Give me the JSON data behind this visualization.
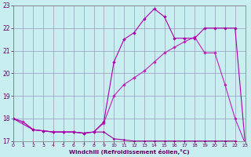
{
  "xlabel": "Windchill (Refroidissement éolien,°C)",
  "bg_color": "#c8eef0",
  "grid_color": "#9999bb",
  "xlim": [
    0,
    23
  ],
  "ylim": [
    17,
    23
  ],
  "yticks": [
    17,
    18,
    19,
    20,
    21,
    22,
    23
  ],
  "xticks": [
    0,
    1,
    2,
    3,
    4,
    5,
    6,
    7,
    8,
    9,
    10,
    11,
    12,
    13,
    14,
    15,
    16,
    17,
    18,
    19,
    20,
    21,
    22,
    23
  ],
  "line1_color": "#990099",
  "line2_color": "#bb22bb",
  "line3_color": "#aa00aa",
  "line1_x": [
    0,
    1,
    2,
    3,
    4,
    5,
    6,
    7,
    8,
    9,
    10,
    11,
    12,
    13,
    14,
    15,
    16,
    17,
    18,
    19,
    20,
    21,
    22,
    23
  ],
  "line1_y": [
    18.0,
    17.85,
    17.5,
    17.45,
    17.4,
    17.4,
    17.4,
    17.35,
    17.4,
    17.4,
    17.1,
    17.05,
    17.0,
    17.0,
    17.0,
    17.0,
    17.0,
    17.0,
    17.0,
    17.0,
    17.0,
    17.0,
    17.0,
    16.9
  ],
  "line2_x": [
    0,
    1,
    2,
    3,
    4,
    5,
    6,
    7,
    8,
    9,
    10,
    11,
    12,
    13,
    14,
    15,
    16,
    17,
    18,
    19,
    20,
    21,
    22,
    23
  ],
  "line2_y": [
    18.0,
    17.85,
    17.5,
    17.45,
    17.4,
    17.4,
    17.4,
    17.35,
    17.4,
    17.8,
    19.0,
    19.5,
    19.8,
    20.1,
    20.5,
    20.9,
    21.15,
    21.4,
    21.6,
    20.9,
    20.9,
    19.5,
    18.0,
    16.9
  ],
  "line3_x": [
    0,
    2,
    3,
    4,
    5,
    6,
    7,
    8,
    9,
    10,
    11,
    12,
    13,
    14,
    15,
    16,
    17,
    18,
    19,
    20,
    21,
    22,
    23
  ],
  "line3_y": [
    18.0,
    17.5,
    17.45,
    17.4,
    17.4,
    17.4,
    17.35,
    17.4,
    17.85,
    20.5,
    21.5,
    21.8,
    22.4,
    22.85,
    22.5,
    21.55,
    21.55,
    21.55,
    22.0,
    22.0,
    22.0,
    22.0,
    16.9
  ]
}
